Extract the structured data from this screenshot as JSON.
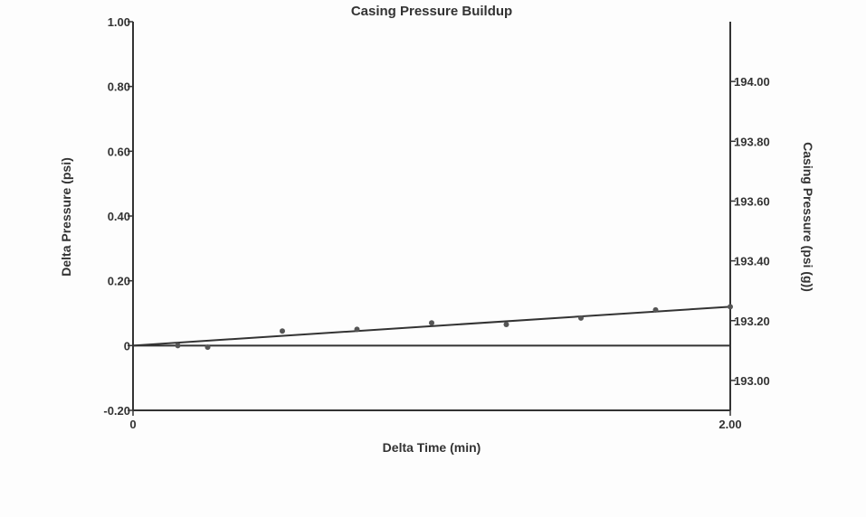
{
  "chart_data": {
    "type": "scatter",
    "title": "Casing Pressure Buildup",
    "xlabel": "Delta Time (min)",
    "ylabel": "Delta Pressure (psi)",
    "y2label": "Casing Pressure (psi (g))",
    "xlim": [
      0,
      2.0
    ],
    "ylim": [
      -0.2,
      1.0
    ],
    "y2lim": [
      192.9,
      194.2
    ],
    "x_ticks": [
      {
        "value": 0,
        "label": "0"
      },
      {
        "value": 2.0,
        "label": "2.00"
      }
    ],
    "y_ticks": [
      {
        "value": -0.2,
        "label": "-0.20"
      },
      {
        "value": 0,
        "label": "0"
      },
      {
        "value": 0.2,
        "label": "0.20"
      },
      {
        "value": 0.4,
        "label": "0.40"
      },
      {
        "value": 0.6,
        "label": "0.60"
      },
      {
        "value": 0.8,
        "label": "0.80"
      },
      {
        "value": 1.0,
        "label": "1.00"
      }
    ],
    "y2_ticks": [
      {
        "value": 193.0,
        "label": "193.00"
      },
      {
        "value": 193.2,
        "label": "193.20"
      },
      {
        "value": 193.4,
        "label": "193.40"
      },
      {
        "value": 193.6,
        "label": "193.60"
      },
      {
        "value": 193.8,
        "label": "193.80"
      },
      {
        "value": 194.0,
        "label": "194.00"
      }
    ],
    "series": [
      {
        "points": [
          {
            "x": 0.15,
            "y": 0.0
          },
          {
            "x": 0.25,
            "y": -0.005
          },
          {
            "x": 0.5,
            "y": 0.045
          },
          {
            "x": 0.75,
            "y": 0.05
          },
          {
            "x": 1.0,
            "y": 0.07
          },
          {
            "x": 1.25,
            "y": 0.065
          },
          {
            "x": 1.5,
            "y": 0.085
          },
          {
            "x": 1.75,
            "y": 0.11
          },
          {
            "x": 2.0,
            "y": 0.12
          }
        ]
      }
    ],
    "trendline": {
      "x": [
        0,
        2.0
      ],
      "y": [
        0,
        0.12
      ]
    },
    "zero_line": 0,
    "grid": false,
    "colors": {
      "axis": "#333333",
      "marker": "#555555",
      "trend": "#333333"
    }
  }
}
